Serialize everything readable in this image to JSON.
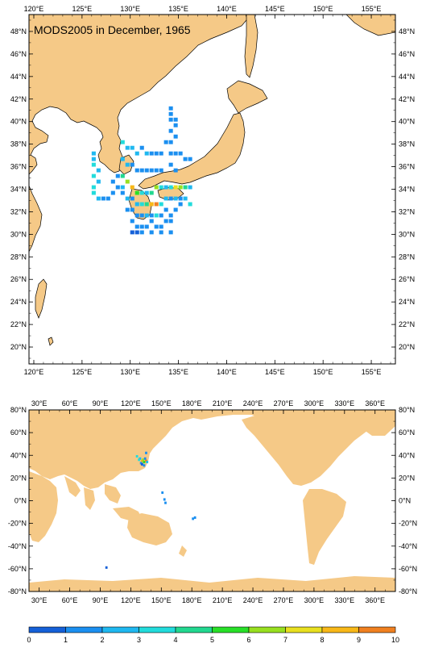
{
  "title": "MODS2005 in December, 1965",
  "colors": {
    "land": "#f5c987",
    "ocean": "#ffffff",
    "frame": "#000000"
  },
  "top_map": {
    "lon_range": [
      119.5,
      157.5
    ],
    "lat_range": [
      18.5,
      49.5
    ],
    "lon_ticks": [
      "120°E",
      "125°E",
      "130°E",
      "135°E",
      "140°E",
      "145°E",
      "150°E",
      "155°E"
    ],
    "lat_ticks": [
      "20°N",
      "22°N",
      "24°N",
      "26°N",
      "28°N",
      "30°N",
      "32°N",
      "34°N",
      "36°N",
      "38°N",
      "40°N",
      "42°N",
      "44°N",
      "46°N",
      "48°N"
    ]
  },
  "bottom_map": {
    "lon_range": [
      20,
      380
    ],
    "lat_range": [
      -80,
      80
    ],
    "lon_ticks": [
      "30°E",
      "60°E",
      "90°E",
      "120°E",
      "150°E",
      "180°E",
      "210°E",
      "240°E",
      "270°E",
      "300°E",
      "330°E",
      "360°E"
    ],
    "lat_ticks": [
      "80°N",
      "60°N",
      "40°N",
      "20°N",
      "0°N",
      "-20°N",
      "-40°N",
      "-60°N",
      "-80°N"
    ]
  },
  "colorbar": {
    "labels": [
      "0",
      "1",
      "2",
      "3",
      "4",
      "5",
      "6",
      "7",
      "8",
      "9",
      "10"
    ],
    "colors": [
      "#1560d8",
      "#1b8ff0",
      "#1fb8f0",
      "#22dcdc",
      "#22d890",
      "#28e028",
      "#98e020",
      "#e8e020",
      "#f8b818",
      "#f08020"
    ]
  }
}
